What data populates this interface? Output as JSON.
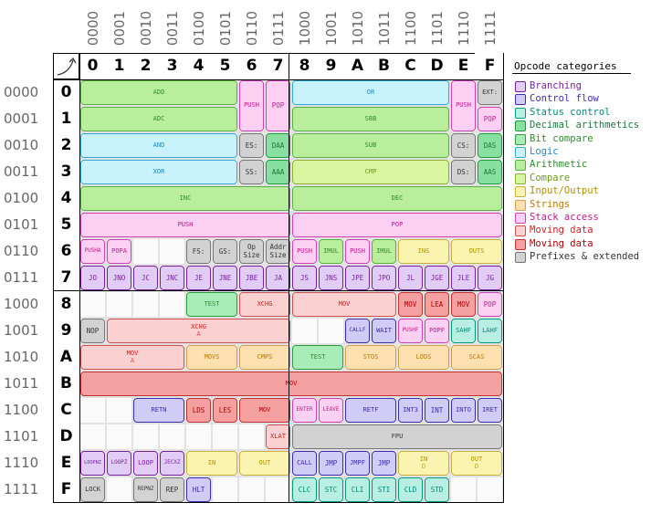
{
  "col_binary": [
    "0000",
    "0001",
    "0010",
    "0011",
    "0100",
    "0101",
    "0110",
    "0111",
    "1000",
    "1001",
    "1010",
    "1011",
    "1100",
    "1101",
    "1110",
    "1111"
  ],
  "col_hex": [
    "0",
    "1",
    "2",
    "3",
    "4",
    "5",
    "6",
    "7",
    "8",
    "9",
    "A",
    "B",
    "C",
    "D",
    "E",
    "F"
  ],
  "row_binary": [
    "0000",
    "0001",
    "0010",
    "0011",
    "0100",
    "0101",
    "0110",
    "0111",
    "1000",
    "1001",
    "1010",
    "1011",
    "1100",
    "1101",
    "1110",
    "1111"
  ],
  "row_hex": [
    "0",
    "1",
    "2",
    "3",
    "4",
    "5",
    "6",
    "7",
    "8",
    "9",
    "A",
    "B",
    "C",
    "D",
    "E",
    "F"
  ],
  "corner_icon": "arrow-up-right-icon",
  "legend": {
    "title": "Opcode categories",
    "items": [
      {
        "label": "Branching",
        "text": "#7b1fa2",
        "fill": "#e1ccf5",
        "border": "#7b1fa2"
      },
      {
        "label": "Control flow",
        "text": "#3c2db0",
        "fill": "#d0ccf5",
        "border": "#3c2db0"
      },
      {
        "label": "Status control",
        "text": "#00897b",
        "fill": "#b8efe2",
        "border": "#009a80"
      },
      {
        "label": "Decimal arithmetics",
        "text": "#1b7a3a",
        "fill": "#88e0a0",
        "border": "#1b9a40"
      },
      {
        "label": "Bit compare",
        "text": "#2e8b2e",
        "fill": "#a8ecb8",
        "border": "#2e9a40"
      },
      {
        "label": "Logic",
        "text": "#1e88c8",
        "fill": "#c8f2fc",
        "border": "#30a8d8"
      },
      {
        "label": "Arithmetic",
        "text": "#2e8b2e",
        "fill": "#b8ee9c",
        "border": "#58b040"
      },
      {
        "label": "Compare",
        "text": "#6a9a20",
        "fill": "#d8f5a0",
        "border": "#8ab030"
      },
      {
        "label": "Input/Output",
        "text": "#b09000",
        "fill": "#fbf3b0",
        "border": "#c8b040"
      },
      {
        "label": "Strings",
        "text": "#c07800",
        "fill": "#fce0b0",
        "border": "#d0a050"
      },
      {
        "label": "Stack access",
        "text": "#c2188b",
        "fill": "#fbd0f2",
        "border": "#d040b0"
      },
      {
        "label": "Moving data",
        "text": "#d02020",
        "fill": "#fad0d0",
        "border": "#d05050"
      },
      {
        "label": "Moving data",
        "text": "#b00000",
        "fill": "#f5a0a0",
        "border": "#c03030"
      },
      {
        "label": "Prefixes & extended",
        "text": "#333333",
        "fill": "#d2d2d2",
        "border": "#777777"
      }
    ]
  },
  "ops": [
    {
      "label": "ADD",
      "cat": 6,
      "r": 0,
      "c": 0,
      "w": 6,
      "h": 1
    },
    {
      "label": "PUSH",
      "cat": 10,
      "r": 0,
      "c": 6,
      "w": 1,
      "h": 2
    },
    {
      "label": "POP",
      "cat": 10,
      "r": 0,
      "c": 7,
      "w": 1,
      "h": 2
    },
    {
      "label": "OR",
      "cat": 5,
      "r": 0,
      "c": 8,
      "w": 6,
      "h": 1
    },
    {
      "label": "PUSH",
      "cat": 10,
      "r": 0,
      "c": 14,
      "w": 1,
      "h": 2
    },
    {
      "label": "EXT:",
      "cat": 13,
      "r": 0,
      "c": 15,
      "w": 1,
      "h": 1
    },
    {
      "label": "ADC",
      "cat": 6,
      "r": 1,
      "c": 0,
      "w": 6,
      "h": 1
    },
    {
      "label": "SBB",
      "cat": 6,
      "r": 1,
      "c": 8,
      "w": 6,
      "h": 1
    },
    {
      "label": "POP",
      "cat": 10,
      "r": 1,
      "c": 15,
      "w": 1,
      "h": 1
    },
    {
      "label": "AND",
      "cat": 5,
      "r": 2,
      "c": 0,
      "w": 6,
      "h": 1
    },
    {
      "label": "ES:",
      "cat": 13,
      "r": 2,
      "c": 6,
      "w": 1,
      "h": 1
    },
    {
      "label": "DAA",
      "cat": 3,
      "r": 2,
      "c": 7,
      "w": 1,
      "h": 1
    },
    {
      "label": "SUB",
      "cat": 6,
      "r": 2,
      "c": 8,
      "w": 6,
      "h": 1
    },
    {
      "label": "CS:",
      "cat": 13,
      "r": 2,
      "c": 14,
      "w": 1,
      "h": 1
    },
    {
      "label": "DAS",
      "cat": 3,
      "r": 2,
      "c": 15,
      "w": 1,
      "h": 1
    },
    {
      "label": "XOR",
      "cat": 5,
      "r": 3,
      "c": 0,
      "w": 6,
      "h": 1
    },
    {
      "label": "SS:",
      "cat": 13,
      "r": 3,
      "c": 6,
      "w": 1,
      "h": 1
    },
    {
      "label": "AAA",
      "cat": 3,
      "r": 3,
      "c": 7,
      "w": 1,
      "h": 1
    },
    {
      "label": "CMP",
      "cat": 7,
      "r": 3,
      "c": 8,
      "w": 6,
      "h": 1
    },
    {
      "label": "DS:",
      "cat": 13,
      "r": 3,
      "c": 14,
      "w": 1,
      "h": 1
    },
    {
      "label": "AAS",
      "cat": 3,
      "r": 3,
      "c": 15,
      "w": 1,
      "h": 1
    },
    {
      "label": "INC",
      "cat": 6,
      "r": 4,
      "c": 0,
      "w": 8,
      "h": 1
    },
    {
      "label": "DEC",
      "cat": 6,
      "r": 4,
      "c": 8,
      "w": 8,
      "h": 1
    },
    {
      "label": "PUSH",
      "cat": 10,
      "r": 5,
      "c": 0,
      "w": 8,
      "h": 1
    },
    {
      "label": "POP",
      "cat": 10,
      "r": 5,
      "c": 8,
      "w": 8,
      "h": 1
    },
    {
      "label": "PUSHA",
      "cat": 10,
      "r": 6,
      "c": 0,
      "w": 1,
      "h": 1
    },
    {
      "label": "POPA",
      "cat": 10,
      "r": 6,
      "c": 1,
      "w": 1,
      "h": 1
    },
    {
      "label": "FS:",
      "cat": 13,
      "r": 6,
      "c": 4,
      "w": 1,
      "h": 1
    },
    {
      "label": "GS:",
      "cat": 13,
      "r": 6,
      "c": 5,
      "w": 1,
      "h": 1
    },
    {
      "label": "Op Size",
      "cat": 13,
      "r": 6,
      "c": 6,
      "w": 1,
      "h": 1,
      "two": true
    },
    {
      "label": "Addr Size",
      "cat": 13,
      "r": 6,
      "c": 7,
      "w": 1,
      "h": 1,
      "two": true
    },
    {
      "label": "PUSH",
      "cat": 10,
      "r": 6,
      "c": 8,
      "w": 1,
      "h": 1
    },
    {
      "label": "IMUL",
      "cat": 6,
      "r": 6,
      "c": 9,
      "w": 1,
      "h": 1
    },
    {
      "label": "PUSH",
      "cat": 10,
      "r": 6,
      "c": 10,
      "w": 1,
      "h": 1
    },
    {
      "label": "IMUL",
      "cat": 6,
      "r": 6,
      "c": 11,
      "w": 1,
      "h": 1
    },
    {
      "label": "INS",
      "cat": 8,
      "r": 6,
      "c": 12,
      "w": 2,
      "h": 1
    },
    {
      "label": "OUTS",
      "cat": 8,
      "r": 6,
      "c": 14,
      "w": 2,
      "h": 1
    },
    {
      "label": "JO",
      "cat": 0,
      "r": 7,
      "c": 0,
      "w": 1,
      "h": 1
    },
    {
      "label": "JNO",
      "cat": 0,
      "r": 7,
      "c": 1,
      "w": 1,
      "h": 1
    },
    {
      "label": "JC",
      "cat": 0,
      "r": 7,
      "c": 2,
      "w": 1,
      "h": 1
    },
    {
      "label": "JNC",
      "cat": 0,
      "r": 7,
      "c": 3,
      "w": 1,
      "h": 1
    },
    {
      "label": "JE",
      "cat": 0,
      "r": 7,
      "c": 4,
      "w": 1,
      "h": 1
    },
    {
      "label": "JNE",
      "cat": 0,
      "r": 7,
      "c": 5,
      "w": 1,
      "h": 1
    },
    {
      "label": "JBE",
      "cat": 0,
      "r": 7,
      "c": 6,
      "w": 1,
      "h": 1
    },
    {
      "label": "JA",
      "cat": 0,
      "r": 7,
      "c": 7,
      "w": 1,
      "h": 1
    },
    {
      "label": "JS",
      "cat": 0,
      "r": 7,
      "c": 8,
      "w": 1,
      "h": 1
    },
    {
      "label": "JNS",
      "cat": 0,
      "r": 7,
      "c": 9,
      "w": 1,
      "h": 1
    },
    {
      "label": "JPE",
      "cat": 0,
      "r": 7,
      "c": 10,
      "w": 1,
      "h": 1
    },
    {
      "label": "JPO",
      "cat": 0,
      "r": 7,
      "c": 11,
      "w": 1,
      "h": 1
    },
    {
      "label": "JL",
      "cat": 0,
      "r": 7,
      "c": 12,
      "w": 1,
      "h": 1
    },
    {
      "label": "JGE",
      "cat": 0,
      "r": 7,
      "c": 13,
      "w": 1,
      "h": 1
    },
    {
      "label": "JLE",
      "cat": 0,
      "r": 7,
      "c": 14,
      "w": 1,
      "h": 1
    },
    {
      "label": "JG",
      "cat": 0,
      "r": 7,
      "c": 15,
      "w": 1,
      "h": 1
    },
    {
      "label": "TEST",
      "cat": 4,
      "r": 8,
      "c": 4,
      "w": 2,
      "h": 1
    },
    {
      "label": "XCHG",
      "cat": 11,
      "r": 8,
      "c": 6,
      "w": 2,
      "h": 1
    },
    {
      "label": "MOV",
      "cat": 11,
      "r": 8,
      "c": 8,
      "w": 4,
      "h": 1
    },
    {
      "label": "MOV",
      "cat": 12,
      "r": 8,
      "c": 12,
      "w": 1,
      "h": 1
    },
    {
      "label": "LEA",
      "cat": 12,
      "r": 8,
      "c": 13,
      "w": 1,
      "h": 1
    },
    {
      "label": "MOV",
      "cat": 12,
      "r": 8,
      "c": 14,
      "w": 1,
      "h": 1
    },
    {
      "label": "POP",
      "cat": 10,
      "r": 8,
      "c": 15,
      "w": 1,
      "h": 1
    },
    {
      "label": "NOP",
      "cat": 13,
      "r": 9,
      "c": 0,
      "w": 1,
      "h": 1
    },
    {
      "label": "XCHG",
      "sub": "A",
      "cat": 11,
      "r": 9,
      "c": 1,
      "w": 7,
      "h": 1
    },
    {
      "label": "CALLF",
      "cat": 1,
      "r": 9,
      "c": 10,
      "w": 1,
      "h": 1
    },
    {
      "label": "WAIT",
      "cat": 1,
      "r": 9,
      "c": 11,
      "w": 1,
      "h": 1
    },
    {
      "label": "PUSHF",
      "cat": 10,
      "r": 9,
      "c": 12,
      "w": 1,
      "h": 1
    },
    {
      "label": "POPF",
      "cat": 10,
      "r": 9,
      "c": 13,
      "w": 1,
      "h": 1
    },
    {
      "label": "SAHF",
      "cat": 2,
      "r": 9,
      "c": 14,
      "w": 1,
      "h": 1
    },
    {
      "label": "LAHF",
      "cat": 2,
      "r": 9,
      "c": 15,
      "w": 1,
      "h": 1
    },
    {
      "label": "MOV",
      "sub": "A",
      "cat": 11,
      "r": 10,
      "c": 0,
      "w": 4,
      "h": 1
    },
    {
      "label": "MOVS",
      "cat": 9,
      "r": 10,
      "c": 4,
      "w": 2,
      "h": 1
    },
    {
      "label": "CMPS",
      "cat": 9,
      "r": 10,
      "c": 6,
      "w": 2,
      "h": 1
    },
    {
      "label": "TEST",
      "cat": 4,
      "r": 10,
      "c": 8,
      "w": 2,
      "h": 1
    },
    {
      "label": "STOS",
      "cat": 9,
      "r": 10,
      "c": 10,
      "w": 2,
      "h": 1
    },
    {
      "label": "LODS",
      "cat": 9,
      "r": 10,
      "c": 12,
      "w": 2,
      "h": 1
    },
    {
      "label": "SCAS",
      "cat": 9,
      "r": 10,
      "c": 14,
      "w": 2,
      "h": 1
    },
    {
      "label": "MOV",
      "cat": 12,
      "r": 11,
      "c": 0,
      "w": 16,
      "h": 1
    },
    {
      "label": "RETN",
      "cat": 1,
      "r": 12,
      "c": 2,
      "w": 2,
      "h": 1
    },
    {
      "label": "LDS",
      "cat": 12,
      "r": 12,
      "c": 4,
      "w": 1,
      "h": 1
    },
    {
      "label": "LES",
      "cat": 12,
      "r": 12,
      "c": 5,
      "w": 1,
      "h": 1
    },
    {
      "label": "MOV",
      "cat": 12,
      "r": 12,
      "c": 6,
      "w": 2,
      "h": 1
    },
    {
      "label": "ENTER",
      "cat": 10,
      "r": 12,
      "c": 8,
      "w": 1,
      "h": 1
    },
    {
      "label": "LEAVE",
      "cat": 10,
      "r": 12,
      "c": 9,
      "w": 1,
      "h": 1
    },
    {
      "label": "RETF",
      "cat": 1,
      "r": 12,
      "c": 10,
      "w": 2,
      "h": 1
    },
    {
      "label": "INT3",
      "cat": 1,
      "r": 12,
      "c": 12,
      "w": 1,
      "h": 1
    },
    {
      "label": "INT",
      "cat": 1,
      "r": 12,
      "c": 13,
      "w": 1,
      "h": 1
    },
    {
      "label": "INTO",
      "cat": 1,
      "r": 12,
      "c": 14,
      "w": 1,
      "h": 1
    },
    {
      "label": "IRET",
      "cat": 1,
      "r": 12,
      "c": 15,
      "w": 1,
      "h": 1
    },
    {
      "label": "XLAT",
      "cat": 11,
      "r": 13,
      "c": 7,
      "w": 1,
      "h": 1
    },
    {
      "label": "FPU",
      "cat": 13,
      "r": 13,
      "c": 8,
      "w": 8,
      "h": 1
    },
    {
      "label": "LOOPNZ",
      "cat": 0,
      "r": 14,
      "c": 0,
      "w": 1,
      "h": 1
    },
    {
      "label": "LOOPZ",
      "cat": 0,
      "r": 14,
      "c": 1,
      "w": 1,
      "h": 1
    },
    {
      "label": "LOOP",
      "cat": 0,
      "r": 14,
      "c": 2,
      "w": 1,
      "h": 1
    },
    {
      "label": "JECXZ",
      "cat": 0,
      "r": 14,
      "c": 3,
      "w": 1,
      "h": 1
    },
    {
      "label": "IN",
      "cat": 8,
      "r": 14,
      "c": 4,
      "w": 2,
      "h": 1
    },
    {
      "label": "OUT",
      "cat": 8,
      "r": 14,
      "c": 6,
      "w": 2,
      "h": 1
    },
    {
      "label": "CALL",
      "cat": 1,
      "r": 14,
      "c": 8,
      "w": 1,
      "h": 1
    },
    {
      "label": "JMP",
      "cat": 1,
      "r": 14,
      "c": 9,
      "w": 1,
      "h": 1
    },
    {
      "label": "JMPF",
      "cat": 1,
      "r": 14,
      "c": 10,
      "w": 1,
      "h": 1
    },
    {
      "label": "JMP",
      "cat": 1,
      "r": 14,
      "c": 11,
      "w": 1,
      "h": 1
    },
    {
      "label": "IN",
      "sub": "D",
      "cat": 8,
      "r": 14,
      "c": 12,
      "w": 2,
      "h": 1
    },
    {
      "label": "OUT",
      "sub": "D",
      "cat": 8,
      "r": 14,
      "c": 14,
      "w": 2,
      "h": 1
    },
    {
      "label": "LOCK",
      "cat": 13,
      "r": 15,
      "c": 0,
      "w": 1,
      "h": 1
    },
    {
      "label": "REPNZ",
      "cat": 13,
      "r": 15,
      "c": 2,
      "w": 1,
      "h": 1
    },
    {
      "label": "REP",
      "cat": 13,
      "r": 15,
      "c": 3,
      "w": 1,
      "h": 1
    },
    {
      "label": "HLT",
      "cat": 1,
      "r": 15,
      "c": 4,
      "w": 1,
      "h": 1
    },
    {
      "label": "CLC",
      "cat": 2,
      "r": 15,
      "c": 8,
      "w": 1,
      "h": 1
    },
    {
      "label": "STC",
      "cat": 2,
      "r": 15,
      "c": 9,
      "w": 1,
      "h": 1
    },
    {
      "label": "CLI",
      "cat": 2,
      "r": 15,
      "c": 10,
      "w": 1,
      "h": 1
    },
    {
      "label": "STI",
      "cat": 2,
      "r": 15,
      "c": 11,
      "w": 1,
      "h": 1
    },
    {
      "label": "CLD",
      "cat": 2,
      "r": 15,
      "c": 12,
      "w": 1,
      "h": 1
    },
    {
      "label": "STD",
      "cat": 2,
      "r": 15,
      "c": 13,
      "w": 1,
      "h": 1
    }
  ]
}
